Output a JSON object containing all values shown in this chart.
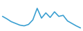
{
  "x": [
    0,
    1,
    2,
    3,
    4,
    5,
    6,
    7,
    8,
    9,
    10,
    11,
    12,
    13,
    14,
    15,
    16,
    17,
    18
  ],
  "y": [
    7.5,
    6.8,
    6.0,
    5.5,
    5.0,
    4.8,
    5.2,
    6.5,
    9.8,
    7.0,
    8.5,
    7.2,
    8.8,
    7.5,
    7.8,
    6.2,
    5.5,
    4.8,
    4.2
  ],
  "line_color": "#3a9fd1",
  "linewidth": 1.2,
  "background_color": "#ffffff"
}
